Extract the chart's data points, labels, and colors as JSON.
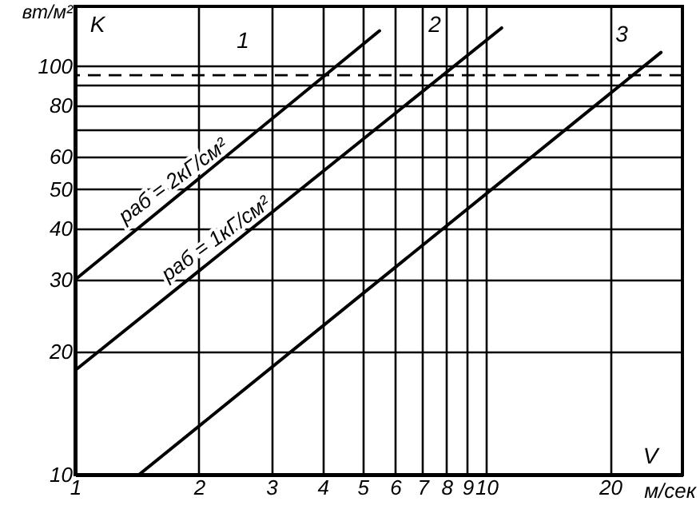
{
  "chart_data": {
    "type": "line",
    "xlabel": "м/сек",
    "ylabel": "вт/м²",
    "log": "xy",
    "grid": true,
    "line_style": "solid",
    "marker": "none",
    "xlim": [
      1,
      30
    ],
    "xticks": [
      1,
      2,
      3,
      4,
      5,
      6,
      7,
      8,
      9,
      10,
      20
    ],
    "ylim": [
      10,
      140
    ],
    "yticks": [
      10,
      20,
      30,
      40,
      50,
      60,
      {
        "value": 70,
        "label": null
      },
      80,
      {
        "value": 90,
        "label": null
      },
      100
    ],
    "series": [
      {
        "name": "pаб = 2кГ/см²",
        "color": "#000000",
        "x": [
          1,
          5.5
        ],
        "values": [
          30,
          122
        ]
      },
      {
        "name": "pаб = 1кГ/см²",
        "color": "#000000",
        "x": [
          1,
          10.9
        ],
        "values": [
          18,
          124
        ]
      },
      {
        "color": "#000000",
        "x": [
          1.43,
          26.6
        ],
        "values": [
          10,
          108
        ]
      }
    ],
    "ref_lines": [
      {
        "axis": "y",
        "value": 95,
        "line_style": "dashed",
        "color": "#000000"
      }
    ],
    "annotations": [
      "K",
      "1",
      "2",
      "3",
      "V"
    ]
  }
}
